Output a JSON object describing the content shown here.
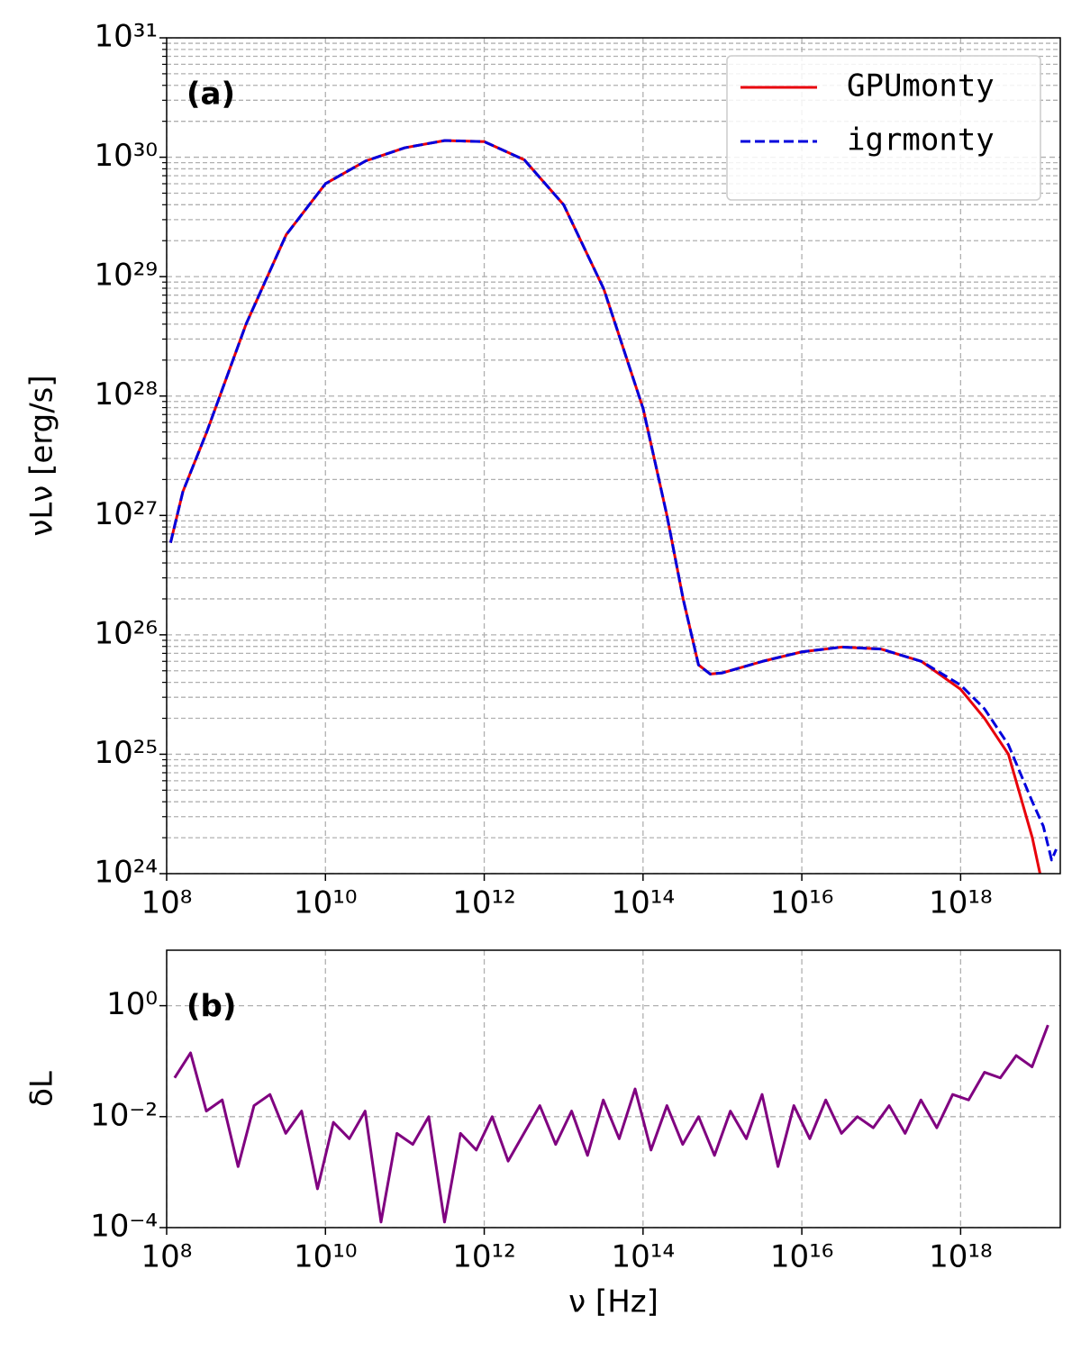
{
  "chart_data": [
    {
      "type": "line",
      "panel_label": "(a)",
      "ylabel": "νLν [erg/s]",
      "log_x": true,
      "log_y": true,
      "grid": true,
      "legend": "upper right",
      "xlim": [
        100000000.0,
        1.8e+19
      ],
      "ylim": [
        1e+24,
        1e+31
      ],
      "xticks": [
        {
          "value": 100000000.0,
          "label": "10⁸"
        },
        {
          "value": 10000000000.0,
          "label": "10¹⁰"
        },
        {
          "value": 1000000000000.0,
          "label": "10¹²"
        },
        {
          "value": 100000000000000.0,
          "label": "10¹⁴"
        },
        {
          "value": 1e+16,
          "label": "10¹⁶"
        },
        {
          "value": 1e+18,
          "label": "10¹⁸"
        }
      ],
      "yticks": [
        {
          "value": 1e+24,
          "label": "10²⁴"
        },
        {
          "value": 1e+25,
          "label": "10²⁵"
        },
        {
          "value": 1e+26,
          "label": "10²⁶"
        },
        {
          "value": 1e+27,
          "label": "10²⁷"
        },
        {
          "value": 1e+28,
          "label": "10²⁸"
        },
        {
          "value": 1e+29,
          "label": "10²⁹"
        },
        {
          "value": 1e+30,
          "label": "10³⁰"
        },
        {
          "value": 1e+31,
          "label": "10³¹"
        }
      ],
      "yminorticks": [
        2e+24,
        3e+24,
        4e+24,
        5e+24,
        6e+24,
        7e+24,
        8e+24,
        9e+24,
        2e+25,
        3e+25,
        4e+25,
        5e+25,
        6e+25,
        7e+25,
        8e+25,
        9e+25,
        2e+26,
        3e+26,
        4e+26,
        5e+26,
        6e+26,
        7e+26,
        8e+26,
        9e+26,
        2e+27,
        3e+27,
        4e+27,
        5e+27,
        6e+27,
        7e+27,
        8e+27,
        9e+27,
        2e+28,
        3e+28,
        4e+28,
        5e+28,
        6e+28,
        7e+28,
        8e+28,
        9e+28,
        2e+29,
        3e+29,
        4e+29,
        5e+29,
        6e+29,
        7e+29,
        8e+29,
        9e+29,
        2e+30,
        3e+30,
        4e+30,
        5e+30,
        6e+30,
        7e+30,
        8e+30,
        9e+30
      ],
      "series": [
        {
          "name": "GPUmonty",
          "color": "#e8000b",
          "linestyle": "solid",
          "x": [
            112000000.0,
            160000000.0,
            320000000.0,
            1000000000.0,
            3200000000.0,
            10000000000.0,
            32000000000.0,
            100000000000.0,
            320000000000.0,
            1000000000000.0,
            3200000000000.0,
            10000000000000.0,
            32000000000000.0,
            100000000000000.0,
            200000000000000.0,
            320000000000000.0,
            500000000000000.0,
            700000000000000.0,
            1000000000000000.0,
            3200000000000000.0,
            1e+16,
            3.2e+16,
            1e+17,
            3.2e+17,
            1e+18,
            2e+18,
            4e+18,
            8e+18,
            1e+19
          ],
          "values": [
            5.9e+26,
            1.58e+27,
            5e+27,
            4e+28,
            2.24e+29,
            6e+29,
            9.3e+29,
            1.2e+30,
            1.38e+30,
            1.35e+30,
            9.5e+29,
            4e+29,
            7.9e+28,
            7.9e+27,
            1e+27,
            2e+26,
            5.6e+25,
            4.7e+25,
            4.8e+25,
            6e+25,
            7.2e+25,
            7.9e+25,
            7.6e+25,
            6e+25,
            3.5e+25,
            2e+25,
            1e+25,
            2e+24,
            1e+24
          ]
        },
        {
          "name": "igrmonty",
          "color": "#0000dd",
          "linestyle": "dashed",
          "x": [
            112000000.0,
            160000000.0,
            320000000.0,
            1000000000.0,
            3200000000.0,
            10000000000.0,
            32000000000.0,
            100000000000.0,
            320000000000.0,
            1000000000000.0,
            3200000000000.0,
            10000000000000.0,
            32000000000000.0,
            100000000000000.0,
            200000000000000.0,
            320000000000000.0,
            500000000000000.0,
            700000000000000.0,
            1000000000000000.0,
            3200000000000000.0,
            1e+16,
            3.2e+16,
            1e+17,
            3.2e+17,
            1e+18,
            2e+18,
            4e+18,
            8e+18,
            1.1e+19,
            1.4e+19,
            1.6e+19
          ],
          "values": [
            5.9e+26,
            1.58e+27,
            5e+27,
            4e+28,
            2.24e+29,
            6e+29,
            9.3e+29,
            1.2e+30,
            1.38e+30,
            1.35e+30,
            9.5e+29,
            4e+29,
            7.9e+28,
            7.9e+27,
            1e+27,
            2e+26,
            5.6e+25,
            4.7e+25,
            4.8e+25,
            6e+25,
            7.2e+25,
            7.9e+25,
            7.6e+25,
            6e+25,
            3.8e+25,
            2.4e+25,
            1.2e+25,
            4e+24,
            2.5e+24,
            1.3e+24,
            1.6e+24
          ]
        }
      ]
    },
    {
      "type": "line",
      "panel_label": "(b)",
      "ylabel": "δL",
      "xlabel": "ν [Hz]",
      "log_x": true,
      "log_y": true,
      "grid": true,
      "xlim": [
        100000000.0,
        1.8e+19
      ],
      "ylim": [
        0.0001,
        10
      ],
      "xticks": [
        {
          "value": 100000000.0,
          "label": "10⁸"
        },
        {
          "value": 10000000000.0,
          "label": "10¹⁰"
        },
        {
          "value": 1000000000000.0,
          "label": "10¹²"
        },
        {
          "value": 100000000000000.0,
          "label": "10¹⁴"
        },
        {
          "value": 1e+16,
          "label": "10¹⁶"
        },
        {
          "value": 1e+18,
          "label": "10¹⁸"
        }
      ],
      "yticks": [
        {
          "value": 0.0001,
          "label": "10⁻⁴"
        },
        {
          "value": 0.01,
          "label": "10⁻²"
        },
        {
          "value": 1,
          "label": "10⁰"
        }
      ],
      "series": [
        {
          "color": "#800080",
          "linestyle": "solid",
          "x": [
            126000000.0,
            200000000.0,
            316000000.0,
            501000000.0,
            794000000.0,
            1260000000.0,
            2000000000.0,
            3160000000.0,
            5010000000.0,
            7940000000.0,
            12600000000.0,
            20000000000.0,
            31600000000.0,
            50100000000.0,
            79400000000.0,
            126000000000.0,
            200000000000.0,
            316000000000.0,
            501000000000.0,
            794000000000.0,
            1260000000000.0,
            2000000000000.0,
            3160000000000.0,
            5010000000000.0,
            7940000000000.0,
            12600000000000.0,
            20000000000000.0,
            31600000000000.0,
            50100000000000.0,
            79400000000000.0,
            126000000000000.0,
            200000000000000.0,
            316000000000000.0,
            501000000000000.0,
            794000000000000.0,
            1260000000000000.0,
            2000000000000000.0,
            3160000000000000.0,
            5010000000000000.0,
            7940000000000000.0,
            1.26e+16,
            2e+16,
            3.16e+16,
            5.01e+16,
            7.94e+16,
            1.26e+17,
            2e+17,
            3.16e+17,
            5.01e+17,
            7.94e+17,
            1.26e+18,
            2e+18,
            3.16e+18,
            5.01e+18,
            7.94e+18,
            1.26e+19
          ],
          "values": [
            0.05,
            0.141,
            0.0126,
            0.02,
            0.00126,
            0.0158,
            0.0251,
            0.005,
            0.0126,
            0.0005,
            0.0079,
            0.004,
            0.0126,
            0.000126,
            0.005,
            0.00316,
            0.01,
            0.000126,
            0.005,
            0.0025,
            0.01,
            0.00158,
            0.005,
            0.0158,
            0.00316,
            0.0126,
            0.002,
            0.02,
            0.004,
            0.0316,
            0.0025,
            0.0158,
            0.00316,
            0.01,
            0.002,
            0.0126,
            0.004,
            0.0251,
            0.00126,
            0.0158,
            0.004,
            0.02,
            0.005,
            0.01,
            0.0063,
            0.0158,
            0.005,
            0.02,
            0.0063,
            0.0251,
            0.02,
            0.063,
            0.05,
            0.126,
            0.079,
            0.447
          ]
        }
      ]
    }
  ]
}
